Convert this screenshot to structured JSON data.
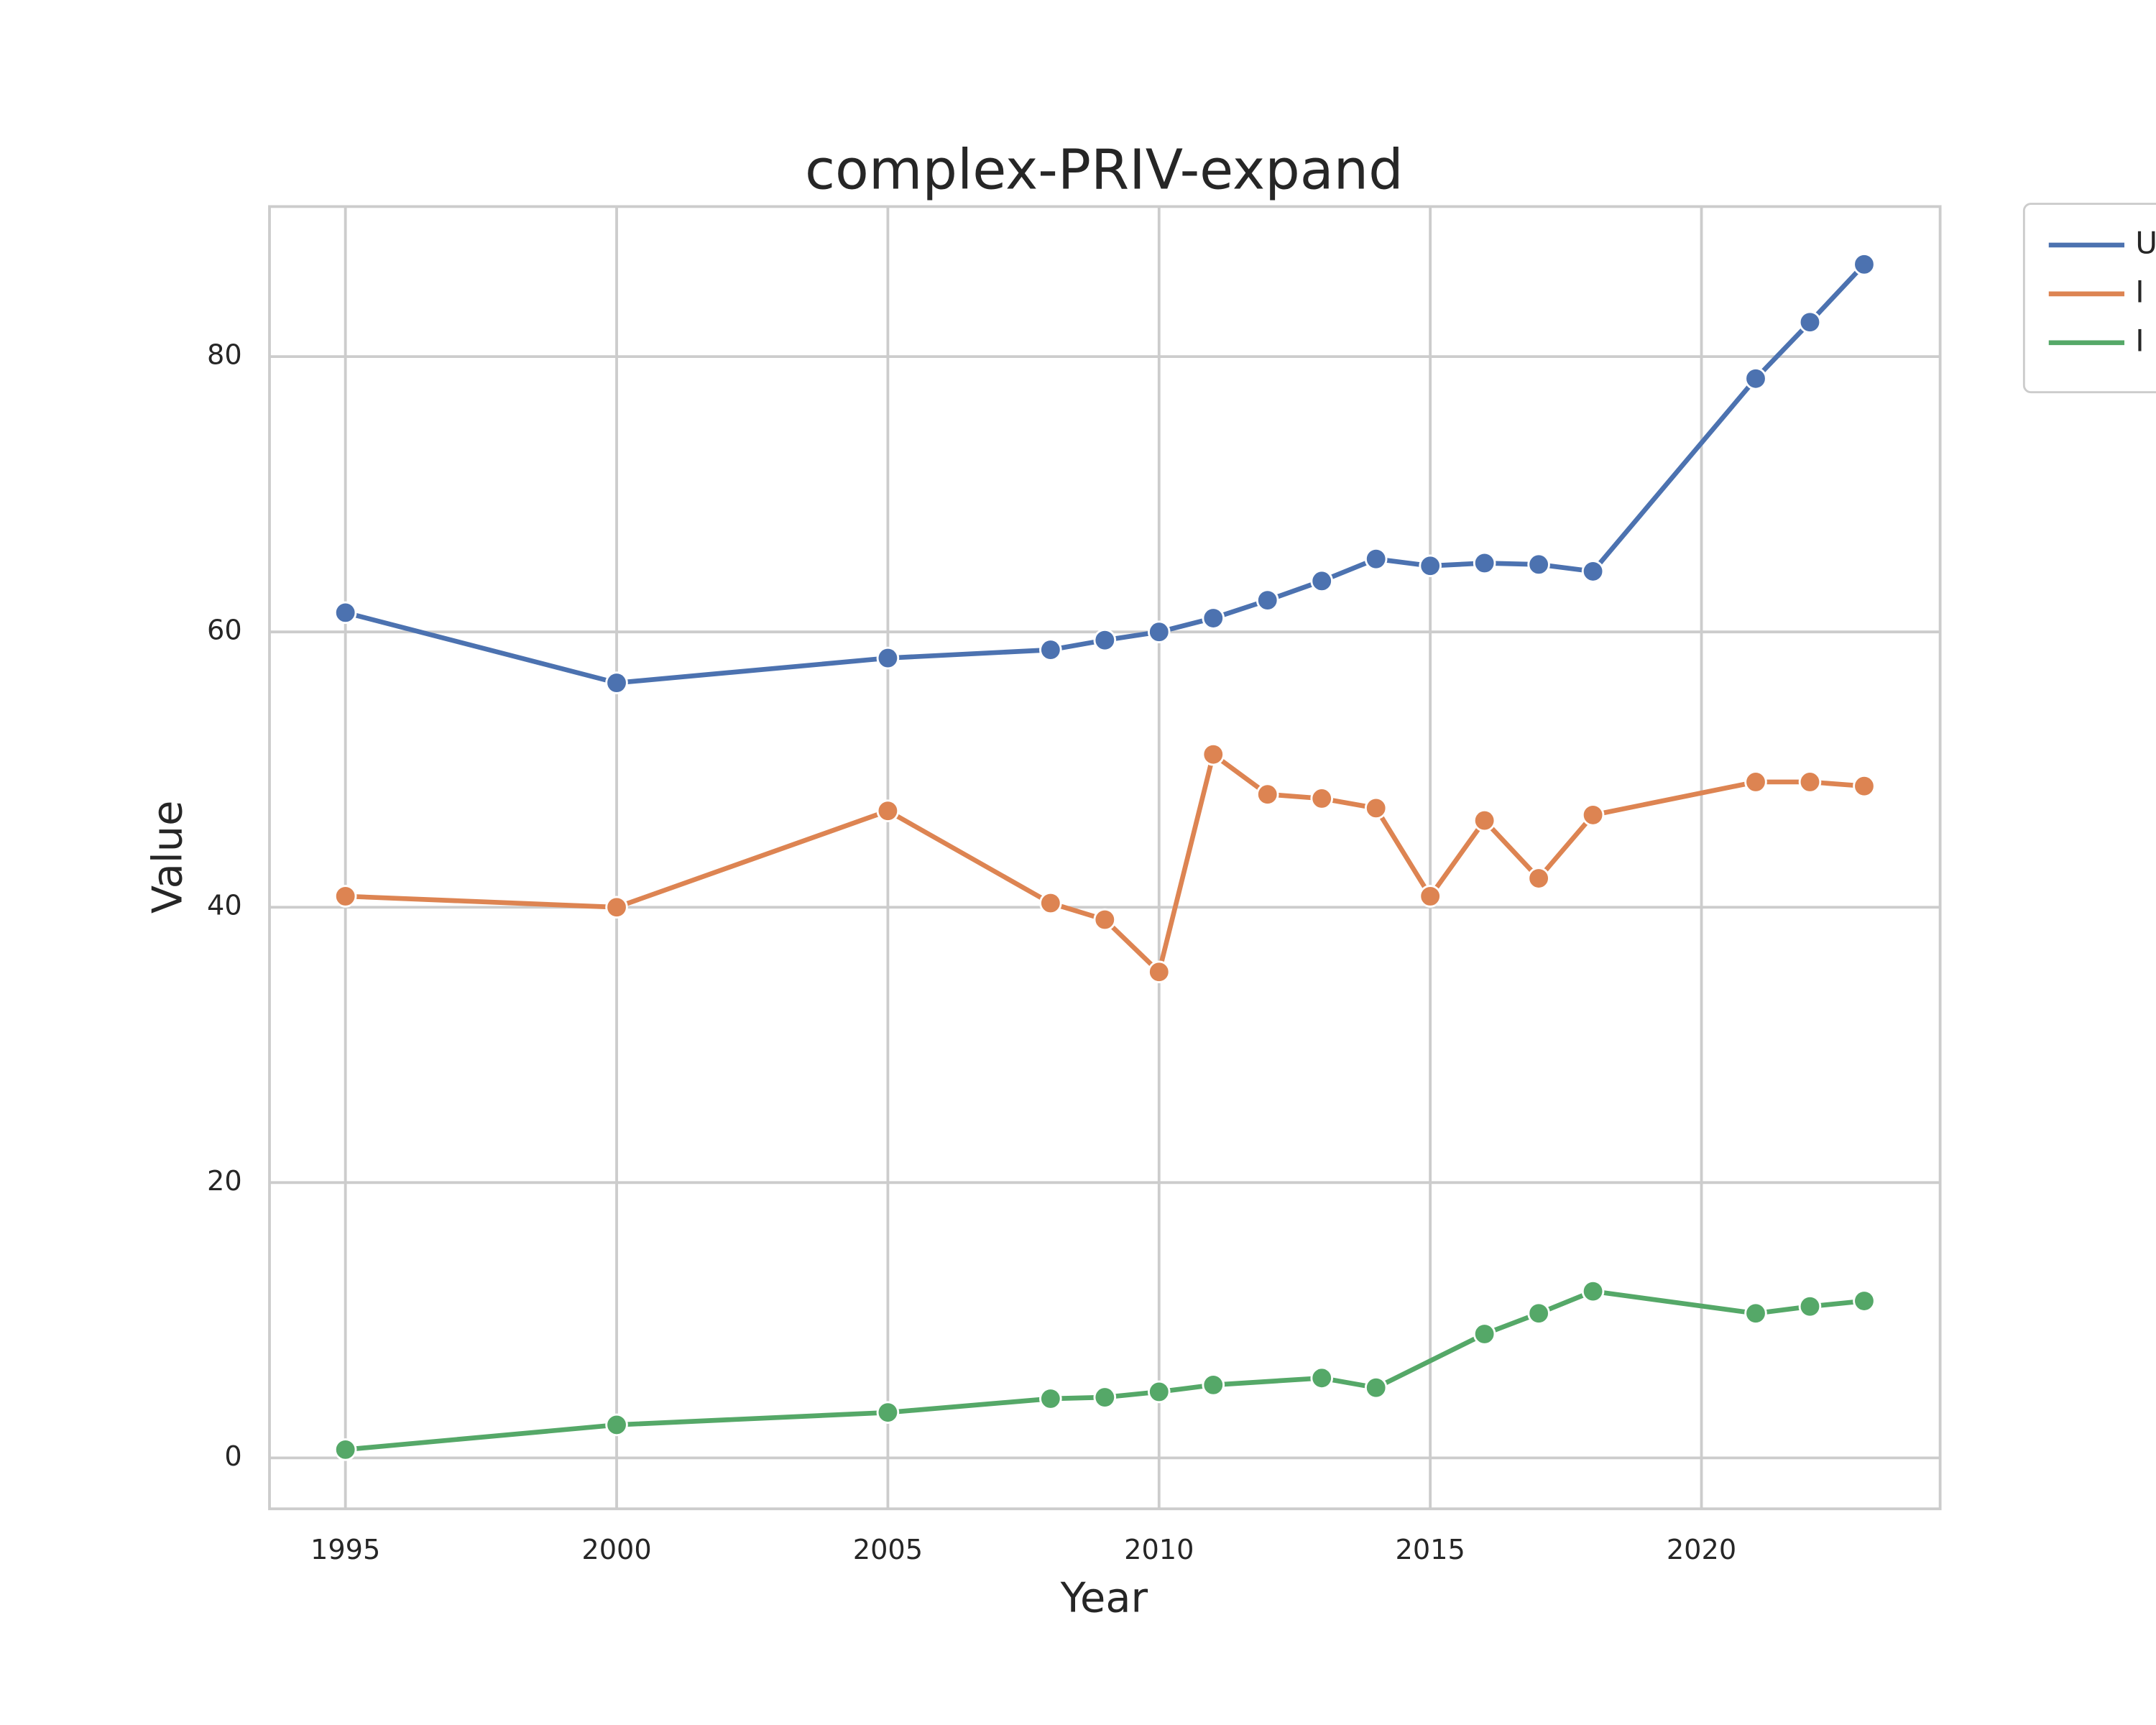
{
  "chart_data": {
    "type": "line",
    "title": "complex-PRIV-expand",
    "xlabel": "Year",
    "ylabel": "Value",
    "x": [
      1995,
      2000,
      2005,
      2008,
      2009,
      2010,
      2011,
      2012,
      2013,
      2014,
      2015,
      2016,
      2017,
      2018,
      2021,
      2022,
      2023
    ],
    "series": [
      {
        "name": "U",
        "color": "#4c72b0",
        "values": [
          61.4,
          56.3,
          58.1,
          58.7,
          59.4,
          60.0,
          61.0,
          62.3,
          63.7,
          65.3,
          64.8,
          65.0,
          64.9,
          64.4,
          78.4,
          82.5,
          86.7
        ]
      },
      {
        "name": "I",
        "color": "#dd8452",
        "values": [
          40.8,
          40.0,
          47.0,
          40.3,
          39.1,
          35.3,
          51.1,
          48.2,
          47.9,
          47.2,
          40.8,
          46.3,
          42.1,
          46.7,
          49.1,
          49.1,
          48.8
        ]
      },
      {
        "name": "I",
        "color": "#55a868",
        "x": [
          1995,
          2000,
          2005,
          2008,
          2009,
          2010,
          2011,
          2013,
          2014,
          2016,
          2017,
          2018,
          2021,
          2022,
          2023
        ],
        "values": [
          0.6,
          2.4,
          3.3,
          4.3,
          4.4,
          4.8,
          5.3,
          5.8,
          5.1,
          9.0,
          10.5,
          12.1,
          10.5,
          11.0,
          11.4
        ]
      }
    ],
    "xlim": [
      1993.6,
      2024.4
    ],
    "ylim": [
      -3.7,
      90.9
    ],
    "xticks": [
      1995,
      2000,
      2005,
      2010,
      2015,
      2020
    ],
    "yticks": [
      0,
      20,
      40,
      60,
      80
    ],
    "grid": true,
    "legend": "outside upper right"
  }
}
